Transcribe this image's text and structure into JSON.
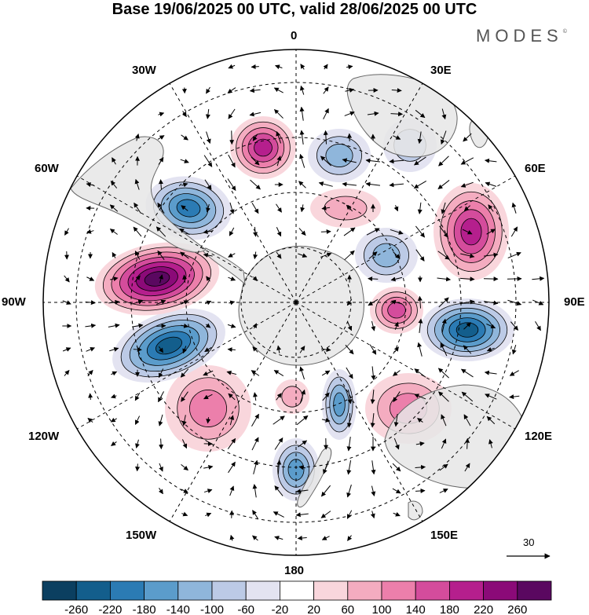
{
  "title": "Base 19/06/2025 00 UTC, valid 28/06/2025 00 UTC",
  "brand": "MODES",
  "brand_mark": "©",
  "longitude_labels": {
    "lon_0": "0",
    "lon_30e": "30E",
    "lon_60e": "60E",
    "lon_90e": "90E",
    "lon_120e": "120E",
    "lon_150e": "150E",
    "lon_180": "180",
    "lon_150w": "150W",
    "lon_120w": "120W",
    "lon_90w": "90W",
    "lon_60w": "60W",
    "lon_30w": "30W"
  },
  "vector_reference": {
    "value": "30"
  },
  "colorbar": {
    "ticks": [
      "-260",
      "-220",
      "-180",
      "-140",
      "-100",
      "-60",
      "-20",
      "20",
      "60",
      "100",
      "140",
      "180",
      "220",
      "260"
    ],
    "colors": [
      "#0b3f60",
      "#135e8c",
      "#2b7bb4",
      "#5b9ccb",
      "#8fb6db",
      "#bccae6",
      "#e3e3f1",
      "#ffffff",
      "#f9d6dc",
      "#f4acc0",
      "#ec7fab",
      "#d44c9c",
      "#b51f8d",
      "#8b0a78",
      "#5a0860"
    ]
  },
  "anomaly_centers": [
    {
      "name": "south-atlantic-positive",
      "value": 180
    },
    {
      "name": "west-of-africa-negative",
      "value": -100
    },
    {
      "name": "south-africa-negative",
      "value": -80
    },
    {
      "name": "indian-ocean-positive",
      "value": 200
    },
    {
      "name": "kerguelen-negative",
      "value": -120
    },
    {
      "name": "south-indian-positive",
      "value": 140
    },
    {
      "name": "australia-south-negative",
      "value": -240
    },
    {
      "name": "australia-positive",
      "value": 120
    },
    {
      "name": "tasman-negative",
      "value": -140
    },
    {
      "name": "new-zealand-negative",
      "value": -140
    },
    {
      "name": "ross-positive",
      "value": 80
    },
    {
      "name": "south-pacific-positive",
      "value": 120
    },
    {
      "name": "amundsen-negative",
      "value": -240
    },
    {
      "name": "bellingshausen-positive",
      "value": 260
    },
    {
      "name": "drake-negative",
      "value": -200
    },
    {
      "name": "weddell-positive",
      "value": 60
    }
  ],
  "colors": {
    "land": "#e8e8e8",
    "coast": "#6a6a6a"
  }
}
